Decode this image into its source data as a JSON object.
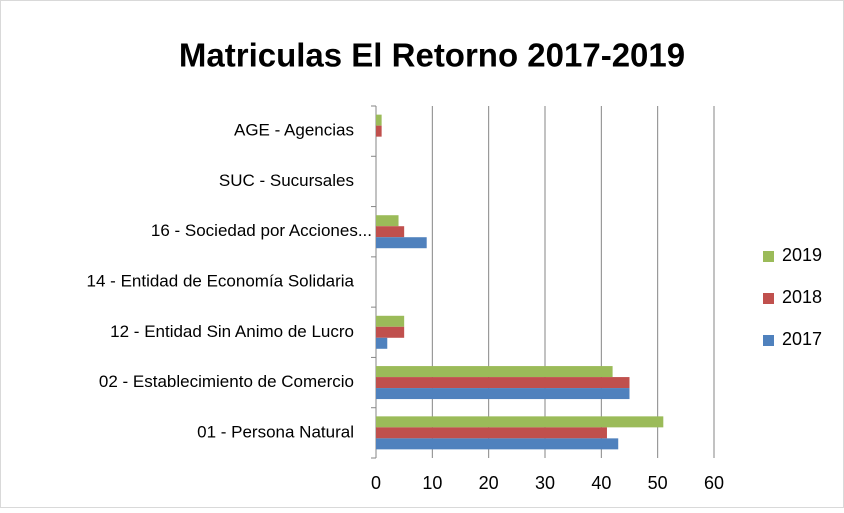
{
  "chart_data": {
    "type": "bar",
    "orientation": "horizontal",
    "title": "Matriculas El Retorno 2017-2019",
    "categories": [
      "AGE - Agencias",
      "SUC - Sucursales",
      "16 - Sociedad por Acciones...",
      "14 - Entidad de Economía Solidaria",
      "12 - Entidad Sin Animo de Lucro",
      "02 - Establecimiento de Comercio",
      "01 - Persona Natural"
    ],
    "series": [
      {
        "name": "2019",
        "color": "#9bbb59",
        "values": [
          1,
          0,
          4,
          0,
          5,
          42,
          51
        ]
      },
      {
        "name": "2018",
        "color": "#c0504d",
        "values": [
          1,
          0,
          5,
          0,
          5,
          45,
          41
        ]
      },
      {
        "name": "2017",
        "color": "#4f81bd",
        "values": [
          0,
          0,
          9,
          0,
          2,
          45,
          43
        ]
      }
    ],
    "xlim": [
      0,
      60
    ],
    "xticks": [
      0,
      10,
      20,
      30,
      40,
      50,
      60
    ],
    "grid": true,
    "legend": "right"
  }
}
